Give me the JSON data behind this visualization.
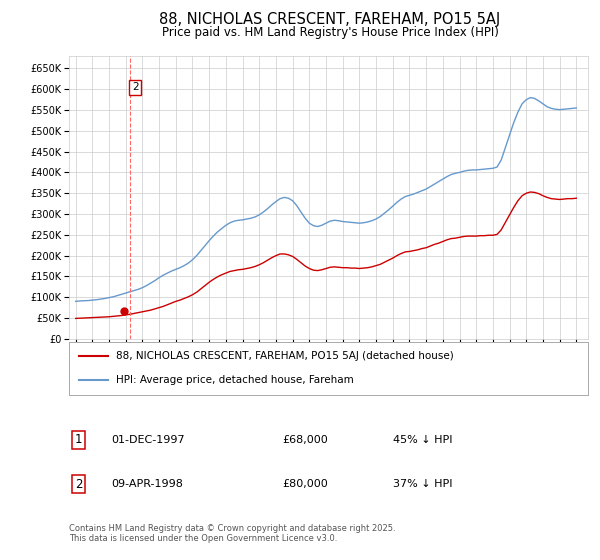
{
  "title": "88, NICHOLAS CRESCENT, FAREHAM, PO15 5AJ",
  "subtitle": "Price paid vs. HM Land Registry's House Price Index (HPI)",
  "ylim": [
    0,
    680000
  ],
  "yticks": [
    0,
    50000,
    100000,
    150000,
    200000,
    250000,
    300000,
    350000,
    400000,
    450000,
    500000,
    550000,
    600000,
    650000
  ],
  "xlim_start": 1994.6,
  "xlim_end": 2025.7,
  "xtick_years": [
    1995,
    1996,
    1997,
    1998,
    1999,
    2000,
    2001,
    2002,
    2003,
    2004,
    2005,
    2006,
    2007,
    2008,
    2009,
    2010,
    2011,
    2012,
    2013,
    2014,
    2015,
    2016,
    2017,
    2018,
    2019,
    2020,
    2021,
    2022,
    2023,
    2024,
    2025
  ],
  "legend_label_red": "88, NICHOLAS CRESCENT, FAREHAM, PO15 5AJ (detached house)",
  "legend_label_blue": "HPI: Average price, detached house, Fareham",
  "transaction1_date": "01-DEC-1997",
  "transaction1_price": "£68,000",
  "transaction1_hpi": "45% ↓ HPI",
  "transaction2_date": "09-APR-1998",
  "transaction2_price": "£80,000",
  "transaction2_hpi": "37% ↓ HPI",
  "copyright_text": "Contains HM Land Registry data © Crown copyright and database right 2025.\nThis data is licensed under the Open Government Licence v3.0.",
  "vline_x": 1998.27,
  "vline_color": "#ff6666",
  "marker2_x": 1998.27,
  "marker2_y": 605000,
  "transaction1_x": 1997.92,
  "transaction1_y": 68000,
  "red_color": "#cc0000",
  "blue_color": "#6699cc",
  "background_color": "#ffffff",
  "grid_color": "#cccccc",
  "title_fontsize": 10.5,
  "subtitle_fontsize": 8.5,
  "hpi_data_x": [
    1995.0,
    1995.25,
    1995.5,
    1995.75,
    1996.0,
    1996.25,
    1996.5,
    1996.75,
    1997.0,
    1997.25,
    1997.5,
    1997.75,
    1998.0,
    1998.25,
    1998.5,
    1998.75,
    1999.0,
    1999.25,
    1999.5,
    1999.75,
    2000.0,
    2000.25,
    2000.5,
    2000.75,
    2001.0,
    2001.25,
    2001.5,
    2001.75,
    2002.0,
    2002.25,
    2002.5,
    2002.75,
    2003.0,
    2003.25,
    2003.5,
    2003.75,
    2004.0,
    2004.25,
    2004.5,
    2004.75,
    2005.0,
    2005.25,
    2005.5,
    2005.75,
    2006.0,
    2006.25,
    2006.5,
    2006.75,
    2007.0,
    2007.25,
    2007.5,
    2007.75,
    2008.0,
    2008.25,
    2008.5,
    2008.75,
    2009.0,
    2009.25,
    2009.5,
    2009.75,
    2010.0,
    2010.25,
    2010.5,
    2010.75,
    2011.0,
    2011.25,
    2011.5,
    2011.75,
    2012.0,
    2012.25,
    2012.5,
    2012.75,
    2013.0,
    2013.25,
    2013.5,
    2013.75,
    2014.0,
    2014.25,
    2014.5,
    2014.75,
    2015.0,
    2015.25,
    2015.5,
    2015.75,
    2016.0,
    2016.25,
    2016.5,
    2016.75,
    2017.0,
    2017.25,
    2017.5,
    2017.75,
    2018.0,
    2018.25,
    2018.5,
    2018.75,
    2019.0,
    2019.25,
    2019.5,
    2019.75,
    2020.0,
    2020.25,
    2020.5,
    2020.75,
    2021.0,
    2021.25,
    2021.5,
    2021.75,
    2022.0,
    2022.25,
    2022.5,
    2022.75,
    2023.0,
    2023.25,
    2023.5,
    2023.75,
    2024.0,
    2024.25,
    2024.5,
    2024.75,
    2025.0
  ],
  "hpi_data_y": [
    90000,
    91000,
    91500,
    92000,
    93000,
    94000,
    95500,
    97000,
    99000,
    101000,
    104000,
    107000,
    110000,
    113000,
    116000,
    119000,
    123000,
    128000,
    134000,
    140000,
    147000,
    153000,
    158000,
    163000,
    167000,
    171000,
    176000,
    182000,
    190000,
    200000,
    212000,
    224000,
    236000,
    247000,
    257000,
    265000,
    273000,
    279000,
    283000,
    285000,
    286000,
    288000,
    290000,
    293000,
    298000,
    305000,
    313000,
    322000,
    330000,
    337000,
    340000,
    338000,
    332000,
    320000,
    305000,
    290000,
    278000,
    272000,
    270000,
    273000,
    278000,
    283000,
    285000,
    284000,
    282000,
    281000,
    280000,
    279000,
    278000,
    279000,
    281000,
    284000,
    288000,
    294000,
    302000,
    310000,
    319000,
    328000,
    336000,
    342000,
    345000,
    348000,
    352000,
    356000,
    360000,
    366000,
    372000,
    378000,
    384000,
    390000,
    395000,
    398000,
    400000,
    403000,
    405000,
    406000,
    406000,
    407000,
    408000,
    409000,
    410000,
    413000,
    430000,
    460000,
    490000,
    520000,
    545000,
    565000,
    575000,
    580000,
    578000,
    572000,
    565000,
    558000,
    554000,
    552000,
    551000,
    552000,
    553000,
    554000,
    555000
  ],
  "red_data_x": [
    1995.0,
    1995.25,
    1995.5,
    1995.75,
    1996.0,
    1996.25,
    1996.5,
    1996.75,
    1997.0,
    1997.25,
    1997.5,
    1997.75,
    1998.0,
    1998.25,
    1998.5,
    1998.75,
    1999.0,
    1999.25,
    1999.5,
    1999.75,
    2000.0,
    2000.25,
    2000.5,
    2000.75,
    2001.0,
    2001.25,
    2001.5,
    2001.75,
    2002.0,
    2002.25,
    2002.5,
    2002.75,
    2003.0,
    2003.25,
    2003.5,
    2003.75,
    2004.0,
    2004.25,
    2004.5,
    2004.75,
    2005.0,
    2005.25,
    2005.5,
    2005.75,
    2006.0,
    2006.25,
    2006.5,
    2006.75,
    2007.0,
    2007.25,
    2007.5,
    2007.75,
    2008.0,
    2008.25,
    2008.5,
    2008.75,
    2009.0,
    2009.25,
    2009.5,
    2009.75,
    2010.0,
    2010.25,
    2010.5,
    2010.75,
    2011.0,
    2011.25,
    2011.5,
    2011.75,
    2012.0,
    2012.25,
    2012.5,
    2012.75,
    2013.0,
    2013.25,
    2013.5,
    2013.75,
    2014.0,
    2014.25,
    2014.5,
    2014.75,
    2015.0,
    2015.25,
    2015.5,
    2015.75,
    2016.0,
    2016.25,
    2016.5,
    2016.75,
    2017.0,
    2017.25,
    2017.5,
    2017.75,
    2018.0,
    2018.25,
    2018.5,
    2018.75,
    2019.0,
    2019.25,
    2019.5,
    2019.75,
    2020.0,
    2020.25,
    2020.5,
    2020.75,
    2021.0,
    2021.25,
    2021.5,
    2021.75,
    2022.0,
    2022.25,
    2022.5,
    2022.75,
    2023.0,
    2023.25,
    2023.5,
    2023.75,
    2024.0,
    2024.25,
    2024.5,
    2024.75,
    2025.0
  ],
  "red_data_y": [
    49000,
    49500,
    50000,
    50500,
    51000,
    51500,
    52000,
    52500,
    53000,
    54000,
    55000,
    56000,
    57500,
    59000,
    61000,
    63000,
    65000,
    67000,
    69000,
    72000,
    75000,
    78000,
    82000,
    86000,
    90000,
    93000,
    97000,
    101000,
    106000,
    112000,
    120000,
    128000,
    136000,
    143000,
    149000,
    154000,
    158000,
    162000,
    164000,
    166000,
    167000,
    169000,
    171000,
    174000,
    178000,
    183000,
    189000,
    195000,
    200000,
    204000,
    204000,
    202000,
    198000,
    191000,
    183000,
    175000,
    169000,
    165000,
    164000,
    166000,
    169000,
    172000,
    173000,
    172000,
    171000,
    171000,
    170000,
    170000,
    169000,
    170000,
    171000,
    173000,
    176000,
    179000,
    184000,
    189000,
    194000,
    200000,
    205000,
    209000,
    210000,
    212000,
    214000,
    217000,
    219000,
    223000,
    227000,
    230000,
    234000,
    238000,
    241000,
    242000,
    244000,
    246000,
    247000,
    247000,
    247000,
    248000,
    248000,
    249000,
    249000,
    251000,
    262000,
    280000,
    298000,
    316000,
    332000,
    344000,
    350000,
    353000,
    352000,
    349000,
    344000,
    340000,
    337000,
    336000,
    335000,
    336000,
    337000,
    337000,
    338000
  ]
}
